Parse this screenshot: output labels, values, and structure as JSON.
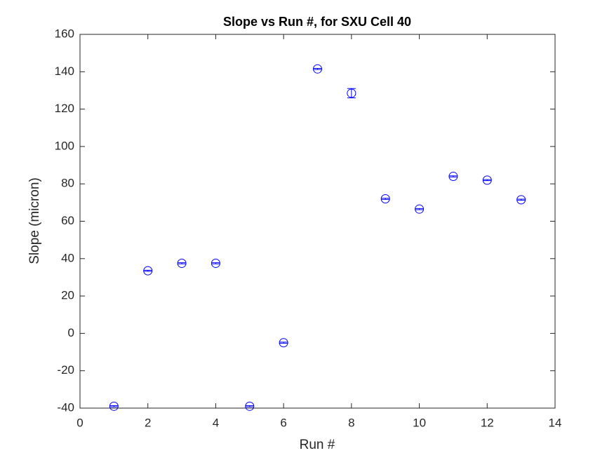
{
  "chart_data": {
    "type": "scatter",
    "title": "Slope vs Run #, for SXU Cell 40",
    "x_label": "Run #",
    "y_label": "Slope (micron)",
    "x": [
      1,
      2,
      3,
      4,
      5,
      6,
      7,
      8,
      9,
      10,
      11,
      12,
      13
    ],
    "series": [
      {
        "color": "#0000ff",
        "values": [
          -39,
          33.5,
          37.5,
          37.5,
          -39,
          -5,
          141.5,
          128.5,
          72,
          66.5,
          84,
          82,
          71.5
        ],
        "errors": [
          0.3,
          0.3,
          0.3,
          0.3,
          0.3,
          0.3,
          0.3,
          2.5,
          0.3,
          0.3,
          0.3,
          0.3,
          0.3
        ]
      }
    ],
    "xlim": [
      0,
      14
    ],
    "xticks": [
      0,
      2,
      4,
      6,
      8,
      10,
      12,
      14
    ],
    "ylim": [
      -40,
      160
    ],
    "yticks": [
      -40,
      -20,
      0,
      20,
      40,
      60,
      80,
      100,
      120,
      140,
      160
    ],
    "grid": false
  }
}
